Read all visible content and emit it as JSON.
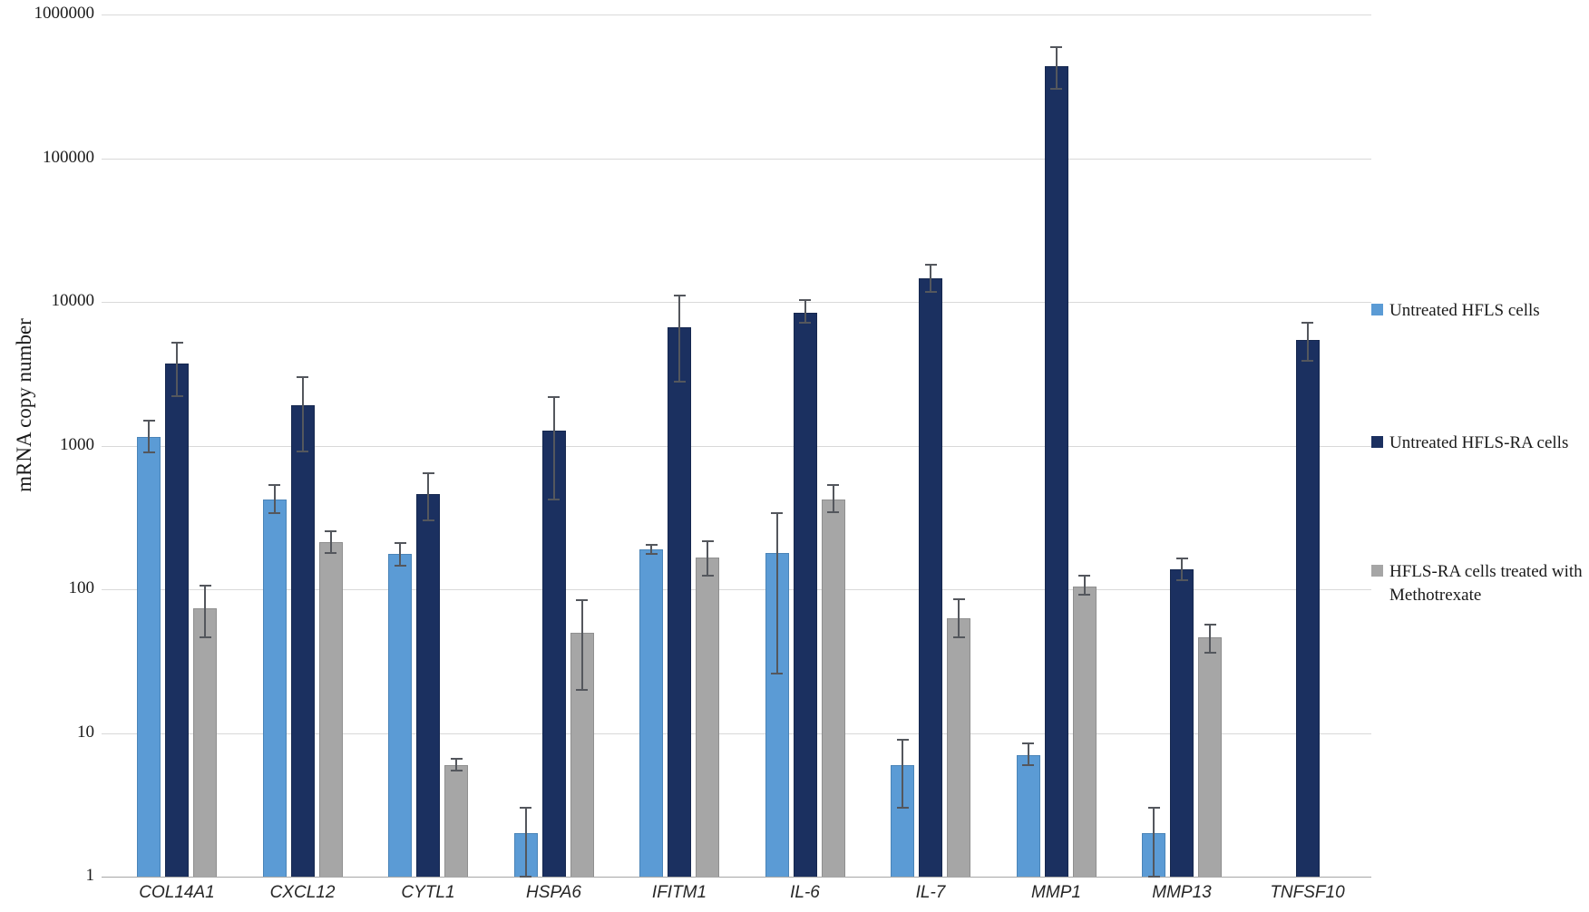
{
  "figure": {
    "background": "#ffffff"
  },
  "chart_data": {
    "type": "bar",
    "scale": "log",
    "title": "",
    "xlabel": "",
    "ylabel": "mRNA copy number",
    "ylim": [
      1,
      1000000
    ],
    "y_ticks": [
      "1",
      "10",
      "100",
      "1000",
      "10000",
      "100000",
      "1000000"
    ],
    "grid": true,
    "legend_position": "right",
    "categories": [
      "COL14A1",
      "CXCL12",
      "CYTL1",
      "HSPA6",
      "IFITM1",
      "IL-6",
      "IL-7",
      "MMP1",
      "MMP13",
      "TNFSF10"
    ],
    "series": [
      {
        "name": "Untreated HFLS cells",
        "color": "#5b9bd5",
        "border_color": "#4a84b8",
        "values": [
          1150,
          420,
          175,
          2,
          190,
          180,
          6,
          7,
          2,
          null
        ],
        "error_low": [
          900,
          340,
          145,
          1,
          176,
          26,
          3,
          6,
          1,
          null
        ],
        "error_high": [
          1500,
          530,
          210,
          3,
          205,
          340,
          9,
          8.5,
          3,
          null
        ]
      },
      {
        "name": "Untreated HFLS-RA cells",
        "color": "#1b3060",
        "border_color": "#16284f",
        "values": [
          3700,
          1900,
          460,
          1270,
          6650,
          8400,
          14600,
          440000,
          138,
          5400
        ],
        "error_low": [
          2200,
          910,
          300,
          420,
          2800,
          7200,
          11700,
          305000,
          115,
          3900
        ],
        "error_high": [
          5200,
          3000,
          640,
          2170,
          11000,
          10300,
          18200,
          590000,
          164,
          7200
        ]
      },
      {
        "name": "HFLS-RA cells treated with Methotrexate",
        "color": "#a6a6a6",
        "border_color": "#8f8f8f",
        "values": [
          74,
          212,
          6,
          50,
          166,
          420,
          63,
          104,
          46,
          null
        ],
        "error_low": [
          46,
          180,
          5.5,
          20,
          124,
          345,
          46,
          92,
          36,
          null
        ],
        "error_high": [
          106,
          255,
          6.6,
          84,
          216,
          530,
          85,
          124,
          57,
          null
        ]
      }
    ],
    "error_bar_color": "#54575d"
  }
}
